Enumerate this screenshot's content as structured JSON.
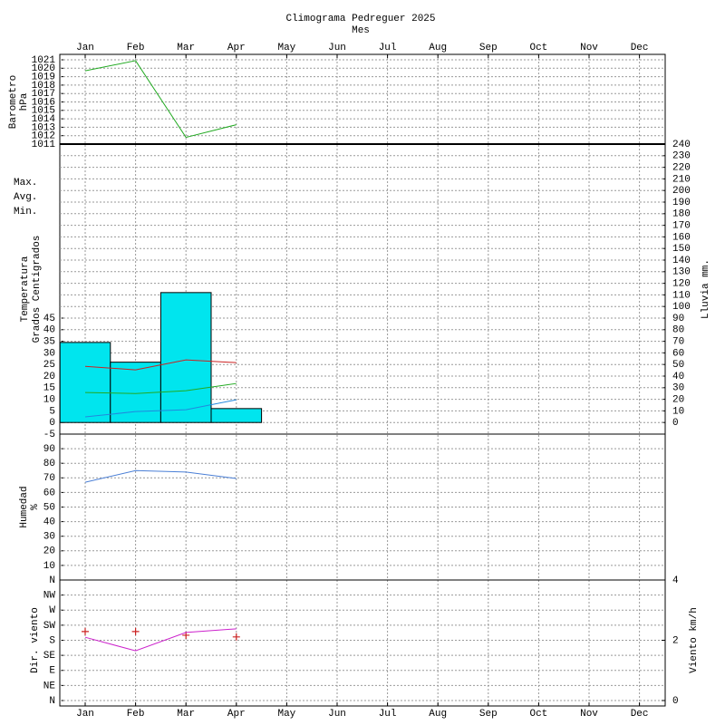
{
  "chart_data": [
    {
      "type": "line",
      "title": "Climograma Pedreguer 2025",
      "subtitle": "Mes",
      "categories": [
        "Jan",
        "Feb",
        "Mar",
        "Apr",
        "May",
        "Jun",
        "Jul",
        "Aug",
        "Sep",
        "Oct",
        "Nov",
        "Dec"
      ],
      "ylabel": [
        "Barometro",
        "hPa"
      ],
      "ylabel_color": "#22aa22",
      "ylim": [
        1011,
        1021
      ],
      "yticks": [
        1011,
        1012,
        1013,
        1014,
        1015,
        1016,
        1017,
        1018,
        1019,
        1020,
        1021
      ],
      "grid": true,
      "series": [
        {
          "color": "#22aa22",
          "values": [
            1019.7,
            1020.9,
            1011.8,
            1013.3,
            null,
            null,
            null,
            null,
            null,
            null,
            null,
            null
          ]
        }
      ]
    },
    {
      "type": "combo",
      "ylabel": [
        "Temperatura",
        "Grados Centigrados"
      ],
      "ylabel_color": "#cc2222",
      "y2label": "Lluvia mm.",
      "y2label_color": "#00d0dd",
      "ylim": [
        -5,
        120
      ],
      "yticks": [
        -5,
        0,
        5,
        10,
        15,
        20,
        25,
        30,
        35,
        40,
        45
      ],
      "y2lim": [
        -10,
        240
      ],
      "y2ticks": [
        0,
        10,
        20,
        30,
        40,
        50,
        60,
        70,
        80,
        90,
        100,
        110,
        120,
        130,
        140,
        150,
        160,
        170,
        180,
        190,
        200,
        210,
        220,
        230,
        240
      ],
      "grid": true,
      "series": [
        {
          "type": "bar",
          "axis": "y2",
          "color": "#00e5ee",
          "values": [
            69,
            52,
            112,
            12,
            null,
            null,
            null,
            null,
            null,
            null,
            null,
            null
          ]
        },
        {
          "type": "line",
          "name": "Max.",
          "color": "#cc2222",
          "values": [
            24.2,
            22.7,
            27,
            25.8,
            null,
            null,
            null,
            null,
            null,
            null,
            null,
            null
          ]
        },
        {
          "type": "line",
          "name": "Avg.",
          "color": "#22aa22",
          "values": [
            12.9,
            12.5,
            13.7,
            16.8,
            null,
            null,
            null,
            null,
            null,
            null,
            null,
            null
          ]
        },
        {
          "type": "line",
          "name": "Min.",
          "color": "#2288dd",
          "values": [
            2.4,
            4.7,
            5.5,
            9.8,
            null,
            null,
            null,
            null,
            null,
            null,
            null,
            null
          ]
        }
      ]
    },
    {
      "type": "line",
      "ylabel": [
        "Humedad",
        "%"
      ],
      "ylabel_color": "#b8660b",
      "ylim": [
        0,
        100
      ],
      "yticks": [
        10,
        20,
        30,
        40,
        50,
        60,
        70,
        80,
        90
      ],
      "grid": true,
      "series": [
        {
          "color": "#4a7fd6",
          "values": [
            67,
            75,
            74,
            69.6,
            null,
            null,
            null,
            null,
            null,
            null,
            null,
            null
          ]
        }
      ]
    },
    {
      "type": "combo",
      "categories": [
        "Jan",
        "Feb",
        "Mar",
        "Apr",
        "May",
        "Jun",
        "Jul",
        "Aug",
        "Sep",
        "Oct",
        "Nov",
        "Dec"
      ],
      "ylabel": [
        "Dir. viento"
      ],
      "ylabel_color": "#cc2222",
      "y2label": "Viento km/h",
      "y2label_color": "#cc22cc",
      "ylim": [
        0,
        360
      ],
      "yticks": [
        {
          "value": 0,
          "label": "N"
        },
        {
          "value": 45,
          "label": "NE"
        },
        {
          "value": 90,
          "label": "E"
        },
        {
          "value": 135,
          "label": "SE"
        },
        {
          "value": 180,
          "label": "S"
        },
        {
          "value": 225,
          "label": "SW"
        },
        {
          "value": 270,
          "label": "W"
        },
        {
          "value": 315,
          "label": "NW"
        },
        {
          "value": 360,
          "label": "N"
        }
      ],
      "y2lim": [
        0,
        4
      ],
      "y2ticks": [
        0,
        2,
        4
      ],
      "grid": true,
      "series": [
        {
          "type": "marker",
          "color": "#cc2222",
          "values": [
            206,
            206,
            195,
            190,
            null,
            null,
            null,
            null,
            null,
            null,
            null,
            null
          ]
        },
        {
          "type": "line",
          "axis": "y2",
          "color": "#cc22cc",
          "values": [
            2.1,
            1.65,
            2.26,
            2.38,
            null,
            null,
            null,
            null,
            null,
            null,
            null,
            null
          ]
        }
      ]
    }
  ]
}
